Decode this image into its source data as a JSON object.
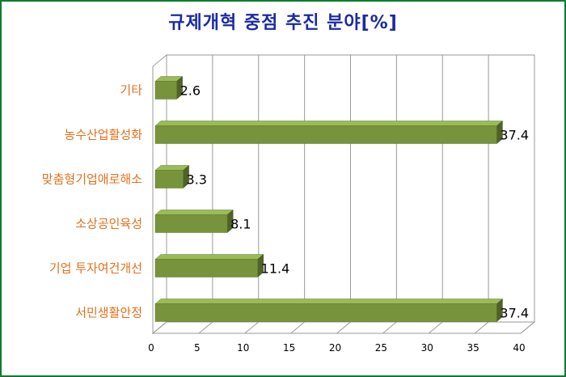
{
  "chart_data": {
    "type": "bar",
    "orientation": "horizontal",
    "title": "규제개혁 중점 추진 분야[%]",
    "categories": [
      "기타",
      "농수산업활성화",
      "맞춤형기업애로해소",
      "소상공인육성",
      "기업 투자여건개선",
      "서민생활안정"
    ],
    "values": [
      2.6,
      37.4,
      3.3,
      8.1,
      11.4,
      37.4
    ],
    "xlim": [
      0,
      40
    ],
    "xticks": [
      0,
      5,
      10,
      15,
      20,
      25,
      30,
      35,
      40
    ],
    "grid": true,
    "legend": "none",
    "bar_color": "#77933c",
    "label_color": "#e2701b",
    "title_color": "#1a2aa6",
    "border_color": "#0a7d2c"
  }
}
